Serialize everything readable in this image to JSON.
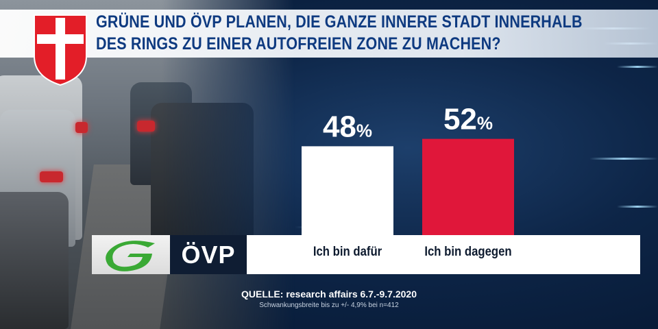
{
  "title": {
    "line1": "GRÜNE UND ÖVP PLANEN, DIE GANZE INNERE STADT INNERHALB",
    "line2": "DES RINGS ZU EINER AUTOFREIEN ZONE ZU MACHEN?"
  },
  "logos": {
    "gruene": "Die Grünen logo",
    "oevp": "ÖVP"
  },
  "colors": {
    "title_text": "#0e3a80",
    "bar_dafuer": "#ffffff",
    "bar_dagegen": "#e0173a",
    "background": "#0d2547"
  },
  "chart_data": {
    "type": "bar",
    "categories": [
      "Ich bin dafür",
      "Ich bin dagegen"
    ],
    "values": [
      48,
      52
    ],
    "unit": "%",
    "data_labels": [
      "48",
      "52"
    ],
    "series": [
      {
        "values": [
          48,
          52
        ]
      }
    ],
    "ylim": [
      0,
      100
    ],
    "grid": false
  },
  "footer": {
    "source": "QUELLE: research affairs 6.7.-9.7.2020",
    "margin": "Schwankungsbreite bis zu +/- 4,9% bei n=412"
  }
}
